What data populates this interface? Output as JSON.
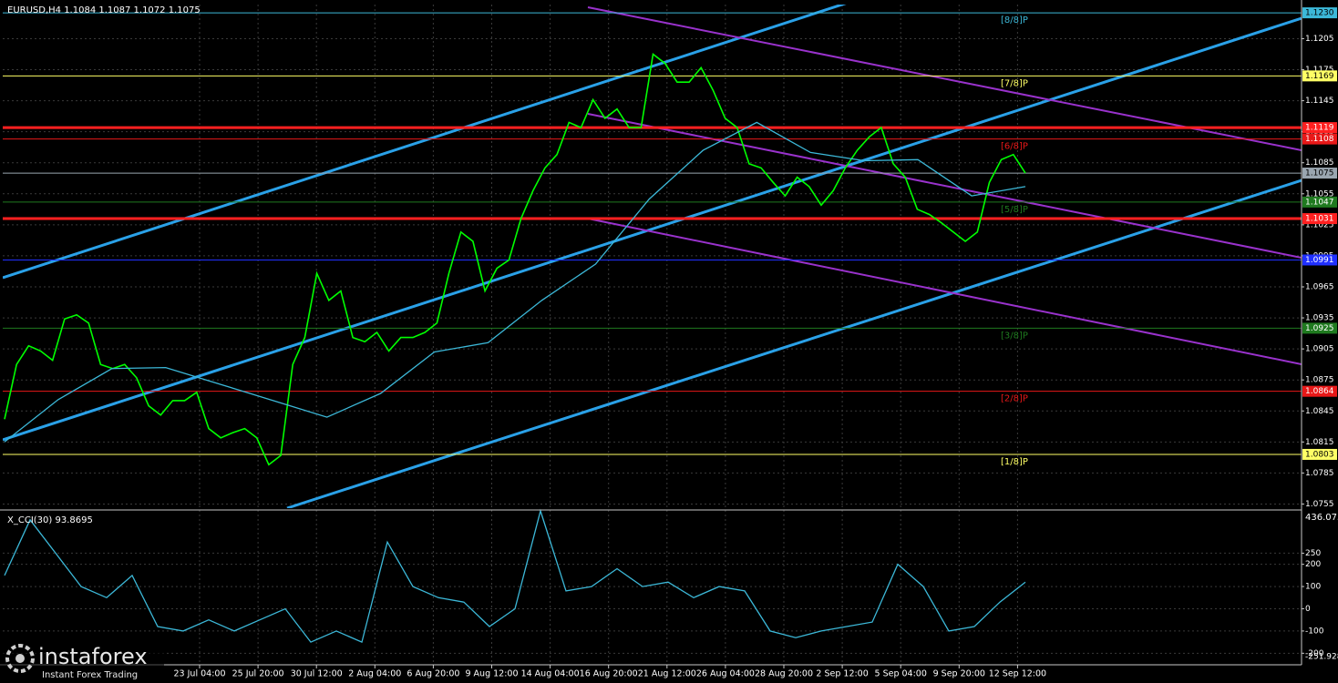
{
  "chart_data": [
    {
      "type": "line",
      "title": "EURUSD,H4 1.1084 1.1087 1.1072 1.1075",
      "series": [
        {
          "color": "#00ff00",
          "values": [
            1.0837,
            1.089,
            1.0908,
            1.0903,
            1.0894,
            1.0934,
            1.0938,
            1.093,
            1.089,
            1.0886,
            1.089,
            1.0877,
            1.085,
            1.0841,
            1.0855,
            1.0855,
            1.0863,
            1.0828,
            1.0819,
            1.0824,
            1.0828,
            1.0819,
            1.0793,
            1.0802,
            1.089,
            1.0916,
            1.0978,
            1.0952,
            1.0961,
            1.0916,
            1.0912,
            1.0921,
            1.0903,
            1.0916,
            1.0916,
            1.0921,
            1.093,
            1.0978,
            1.1018,
            1.1009,
            1.0961,
            1.0983,
            1.0991,
            1.1031,
            1.1058,
            1.108,
            1.1093,
            1.1124,
            1.1119,
            1.1146,
            1.1128,
            1.1137,
            1.1119,
            1.1119,
            1.119,
            1.1181,
            1.1163,
            1.1163,
            1.1177,
            1.1155,
            1.1128,
            1.1119,
            1.1084,
            1.108,
            1.1066,
            1.1053,
            1.1071,
            1.1062,
            1.1044,
            1.1058,
            1.108,
            1.1097,
            1.111,
            1.1119,
            1.1084,
            1.1071,
            1.104,
            1.1035,
            1.1027,
            1.1018,
            1.1009,
            1.1018,
            1.1066,
            1.1088,
            1.1093,
            1.1075
          ]
        },
        {
          "color": "#3cb8d8",
          "values": [
            1.0815,
            1.0856,
            1.0886,
            1.0887,
            1.0871,
            1.0855,
            1.0839,
            1.0862,
            1.0902,
            1.0911,
            1.0952,
            1.0987,
            1.105,
            1.1097,
            1.1124,
            1.1095,
            1.1087,
            1.1088,
            1.1053,
            1.1062
          ]
        }
      ],
      "ylim": [
        1.0751,
        1.1238
      ],
      "yticks": [
        1.1205,
        1.1175,
        1.1145,
        1.1115,
        1.1085,
        1.1055,
        1.1025,
        1.0995,
        1.0965,
        1.0935,
        1.0905,
        1.0875,
        1.0845,
        1.0815,
        1.0785,
        1.0755
      ],
      "grid": true,
      "levels": [
        {
          "value": 1.123,
          "label": "1.1230",
          "color": "#3cb8d8",
          "murrey": "[8/8]P"
        },
        {
          "value": 1.1169,
          "label": "1.1169",
          "color": "#ffff66",
          "murrey": "[7/8]P"
        },
        {
          "value": 1.1119,
          "label": "1.1119",
          "color": "#ff2020",
          "width": 3
        },
        {
          "value": 1.1108,
          "label": "1.1108",
          "color": "#e81818",
          "murrey": "[6/8]P"
        },
        {
          "value": 1.1075,
          "label": "1.1075",
          "color": "#9aa6b0"
        },
        {
          "value": 1.1047,
          "label": "1.1047",
          "color": "#1f7a1f",
          "murrey": "[5/8]P"
        },
        {
          "value": 1.1031,
          "label": "1.1031",
          "color": "#ff2020",
          "width": 3
        },
        {
          "value": 1.0991,
          "label": "1.0991",
          "color": "#2030ff"
        },
        {
          "value": 1.0925,
          "label": "1.0925",
          "color": "#1f7a1f",
          "murrey": "[3/8]P"
        },
        {
          "value": 1.0864,
          "label": "1.0864",
          "color": "#e81818",
          "murrey": "[2/8]P"
        },
        {
          "value": 1.0803,
          "label": "1.0803",
          "color": "#ffff66",
          "murrey": "[1/8]P"
        }
      ],
      "time_labels": [
        "23 Jul 04:00",
        "25 Jul 20:00",
        "30 Jul 12:00",
        "2 Aug 04:00",
        "6 Aug 20:00",
        "9 Aug 12:00",
        "14 Aug 04:00",
        "16 Aug 20:00",
        "21 Aug 12:00",
        "26 Aug 04:00",
        "28 Aug 20:00",
        "2 Sep 12:00",
        "5 Sep 04:00",
        "9 Sep 20:00",
        "12 Sep 12:00"
      ]
    },
    {
      "type": "line",
      "title": "X_CCI(30) 93.8695",
      "series": [
        {
          "color": "#3cb8d8",
          "values": [
            150,
            400,
            250,
            100,
            50,
            150,
            -80,
            -100,
            -50,
            -100,
            -50,
            0,
            -150,
            -100,
            -150,
            300,
            100,
            50,
            30,
            -80,
            0,
            440,
            80,
            100,
            180,
            100,
            120,
            50,
            100,
            80,
            -100,
            -130,
            -100,
            -80,
            -60,
            200,
            100,
            -100,
            -80,
            30,
            120
          ]
        }
      ],
      "ylim": [
        -251.928,
        436.0738
      ],
      "yticks": [
        250,
        200,
        100,
        0,
        -100,
        -200
      ],
      "grid": true
    }
  ],
  "logo": {
    "brand": "instaforex",
    "tagline": "Instant Forex Trading"
  }
}
